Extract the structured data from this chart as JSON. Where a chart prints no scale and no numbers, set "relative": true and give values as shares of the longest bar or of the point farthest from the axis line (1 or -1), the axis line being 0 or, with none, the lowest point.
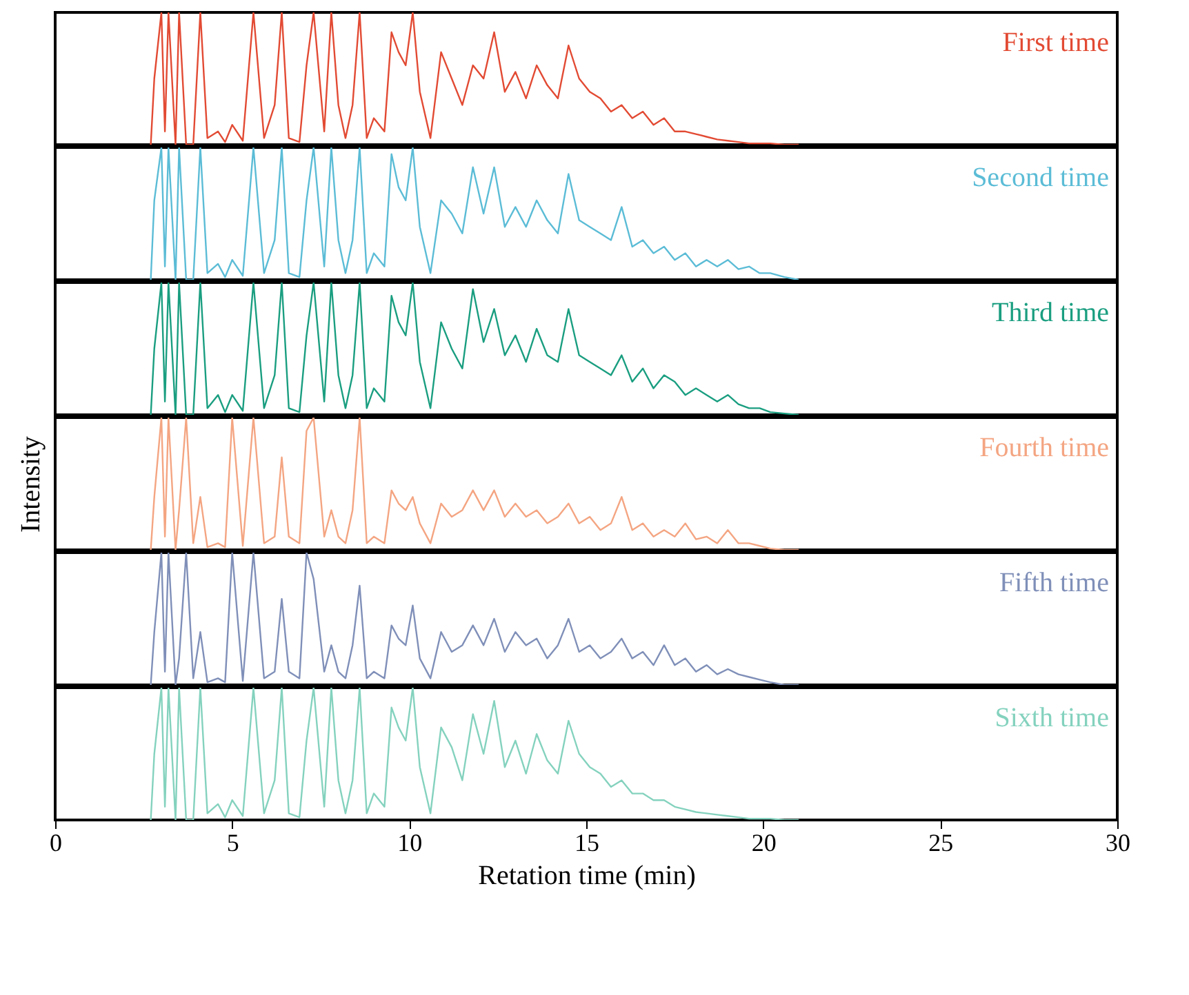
{
  "chart_data": [
    {
      "type": "line",
      "relative": true,
      "tick_labels": false,
      "xlim": [
        0,
        30
      ],
      "xticks": [
        0,
        5,
        10,
        15,
        20,
        25,
        30
      ],
      "x": [
        2.7,
        2.8,
        3.0,
        3.1,
        3.2,
        3.4,
        3.5,
        3.7,
        3.9,
        4.1,
        4.3,
        4.6,
        4.8,
        5.0,
        5.3,
        5.6,
        5.9,
        6.2,
        6.4,
        6.6,
        6.9,
        7.1,
        7.3,
        7.6,
        7.8,
        8.0,
        8.2,
        8.4,
        8.6,
        8.8,
        9.0,
        9.3,
        9.5,
        9.7,
        9.9,
        10.1,
        10.3,
        10.6,
        10.9,
        11.2,
        11.5,
        11.8,
        12.1,
        12.4,
        12.7,
        13.0,
        13.3,
        13.6,
        13.9,
        14.2,
        14.5,
        14.8,
        15.1,
        15.4,
        15.7,
        16.0,
        16.3,
        16.6,
        16.9,
        17.2,
        17.5,
        17.8,
        18.1,
        18.4,
        18.7,
        19.0,
        19.3,
        19.6,
        19.9,
        20.2,
        20.6,
        21.0
      ],
      "series": [
        {
          "name": "First time",
          "color": "#e24a33",
          "values": [
            0,
            0.5,
            1,
            0.1,
            1,
            0,
            1,
            0,
            0,
            1,
            0.05,
            0.1,
            0.02,
            0.15,
            0.03,
            1,
            0.05,
            0.3,
            1,
            0.05,
            0.02,
            0.6,
            1,
            0.1,
            1,
            0.3,
            0.05,
            0.3,
            1,
            0.05,
            0.2,
            0.1,
            0.85,
            0.7,
            0.6,
            1,
            0.4,
            0.05,
            0.7,
            0.5,
            0.3,
            0.6,
            0.5,
            0.85,
            0.4,
            0.55,
            0.35,
            0.6,
            0.45,
            0.35,
            0.75,
            0.5,
            0.4,
            0.35,
            0.25,
            0.3,
            0.2,
            0.25,
            0.15,
            0.2,
            0.1,
            0.1,
            0.08,
            0.06,
            0.04,
            0.03,
            0.02,
            0.01,
            0.01,
            0.01,
            0,
            0
          ]
        }
      ]
    },
    {
      "type": "line",
      "relative": true,
      "tick_labels": false,
      "xlim": [
        0,
        30
      ],
      "xticks": [
        0,
        5,
        10,
        15,
        20,
        25,
        30
      ],
      "x": [
        2.7,
        2.8,
        3.0,
        3.1,
        3.2,
        3.4,
        3.5,
        3.7,
        3.9,
        4.1,
        4.3,
        4.6,
        4.8,
        5.0,
        5.3,
        5.6,
        5.9,
        6.2,
        6.4,
        6.6,
        6.9,
        7.1,
        7.3,
        7.6,
        7.8,
        8.0,
        8.2,
        8.4,
        8.6,
        8.8,
        9.0,
        9.3,
        9.5,
        9.7,
        9.9,
        10.1,
        10.3,
        10.6,
        10.9,
        11.2,
        11.5,
        11.8,
        12.1,
        12.4,
        12.7,
        13.0,
        13.3,
        13.6,
        13.9,
        14.2,
        14.5,
        14.8,
        15.1,
        15.4,
        15.7,
        16.0,
        16.3,
        16.6,
        16.9,
        17.2,
        17.5,
        17.8,
        18.1,
        18.4,
        18.7,
        19.0,
        19.3,
        19.6,
        19.9,
        20.2,
        20.6,
        21.0
      ],
      "series": [
        {
          "name": "Second time",
          "color": "#5bbcd6",
          "values": [
            0,
            0.6,
            1,
            0.1,
            1,
            0,
            1,
            0,
            0,
            1,
            0.05,
            0.12,
            0.02,
            0.15,
            0.03,
            1,
            0.05,
            0.3,
            1,
            0.05,
            0.02,
            0.6,
            1,
            0.1,
            1,
            0.3,
            0.05,
            0.3,
            1,
            0.05,
            0.2,
            0.1,
            0.95,
            0.7,
            0.6,
            1,
            0.4,
            0.05,
            0.6,
            0.5,
            0.35,
            0.85,
            0.5,
            0.85,
            0.4,
            0.55,
            0.4,
            0.6,
            0.45,
            0.35,
            0.8,
            0.45,
            0.4,
            0.35,
            0.3,
            0.55,
            0.25,
            0.3,
            0.2,
            0.25,
            0.15,
            0.2,
            0.1,
            0.15,
            0.1,
            0.15,
            0.08,
            0.1,
            0.05,
            0.05,
            0.02,
            0
          ]
        }
      ]
    },
    {
      "type": "line",
      "relative": true,
      "tick_labels": false,
      "xlim": [
        0,
        30
      ],
      "xticks": [
        0,
        5,
        10,
        15,
        20,
        25,
        30
      ],
      "x": [
        2.7,
        2.8,
        3.0,
        3.1,
        3.2,
        3.4,
        3.5,
        3.7,
        3.9,
        4.1,
        4.3,
        4.6,
        4.8,
        5.0,
        5.3,
        5.6,
        5.9,
        6.2,
        6.4,
        6.6,
        6.9,
        7.1,
        7.3,
        7.6,
        7.8,
        8.0,
        8.2,
        8.4,
        8.6,
        8.8,
        9.0,
        9.3,
        9.5,
        9.7,
        9.9,
        10.1,
        10.3,
        10.6,
        10.9,
        11.2,
        11.5,
        11.8,
        12.1,
        12.4,
        12.7,
        13.0,
        13.3,
        13.6,
        13.9,
        14.2,
        14.5,
        14.8,
        15.1,
        15.4,
        15.7,
        16.0,
        16.3,
        16.6,
        16.9,
        17.2,
        17.5,
        17.8,
        18.1,
        18.4,
        18.7,
        19.0,
        19.3,
        19.6,
        19.9,
        20.2,
        20.6,
        21.0
      ],
      "series": [
        {
          "name": "Third time",
          "color": "#1a9e80",
          "values": [
            0,
            0.5,
            1,
            0.1,
            1,
            0,
            1,
            0,
            0,
            1,
            0.05,
            0.15,
            0.02,
            0.15,
            0.03,
            1,
            0.05,
            0.3,
            1,
            0.05,
            0.02,
            0.6,
            1,
            0.1,
            1,
            0.3,
            0.05,
            0.3,
            1,
            0.05,
            0.2,
            0.1,
            0.9,
            0.7,
            0.6,
            1,
            0.4,
            0.05,
            0.7,
            0.5,
            0.35,
            0.95,
            0.55,
            0.8,
            0.45,
            0.6,
            0.4,
            0.65,
            0.45,
            0.4,
            0.8,
            0.45,
            0.4,
            0.35,
            0.3,
            0.45,
            0.25,
            0.35,
            0.2,
            0.3,
            0.25,
            0.15,
            0.2,
            0.15,
            0.1,
            0.15,
            0.08,
            0.05,
            0.05,
            0.02,
            0.01,
            0
          ]
        }
      ]
    },
    {
      "type": "line",
      "relative": true,
      "tick_labels": false,
      "xlim": [
        0,
        30
      ],
      "xticks": [
        0,
        5,
        10,
        15,
        20,
        25,
        30
      ],
      "ylabel": "Intensity",
      "x": [
        2.7,
        2.8,
        3.0,
        3.1,
        3.2,
        3.4,
        3.5,
        3.7,
        3.9,
        4.1,
        4.3,
        4.6,
        4.8,
        5.0,
        5.3,
        5.6,
        5.9,
        6.2,
        6.4,
        6.6,
        6.9,
        7.1,
        7.3,
        7.6,
        7.8,
        8.0,
        8.2,
        8.4,
        8.6,
        8.8,
        9.0,
        9.3,
        9.5,
        9.7,
        9.9,
        10.1,
        10.3,
        10.6,
        10.9,
        11.2,
        11.5,
        11.8,
        12.1,
        12.4,
        12.7,
        13.0,
        13.3,
        13.6,
        13.9,
        14.2,
        14.5,
        14.8,
        15.1,
        15.4,
        15.7,
        16.0,
        16.3,
        16.6,
        16.9,
        17.2,
        17.5,
        17.8,
        18.1,
        18.4,
        18.7,
        19.0,
        19.3,
        19.6,
        19.9,
        20.2,
        20.6,
        21.0
      ],
      "series": [
        {
          "name": "Fourth time",
          "color": "#f4a582",
          "values": [
            0,
            0.4,
            1,
            0.1,
            1,
            0,
            0.3,
            1,
            0.05,
            0.4,
            0.02,
            0.05,
            0.02,
            1,
            0.03,
            1,
            0.05,
            0.1,
            0.7,
            0.1,
            0.05,
            0.9,
            1,
            0.1,
            0.3,
            0.1,
            0.05,
            0.3,
            1,
            0.05,
            0.1,
            0.05,
            0.45,
            0.35,
            0.3,
            0.4,
            0.2,
            0.05,
            0.35,
            0.25,
            0.3,
            0.45,
            0.3,
            0.45,
            0.25,
            0.35,
            0.25,
            0.3,
            0.2,
            0.25,
            0.35,
            0.2,
            0.25,
            0.15,
            0.2,
            0.4,
            0.15,
            0.2,
            0.1,
            0.15,
            0.1,
            0.2,
            0.08,
            0.1,
            0.05,
            0.15,
            0.05,
            0.05,
            0.03,
            0.01,
            0,
            0
          ]
        }
      ]
    },
    {
      "type": "line",
      "relative": true,
      "tick_labels": false,
      "xlim": [
        0,
        30
      ],
      "xticks": [
        0,
        5,
        10,
        15,
        20,
        25,
        30
      ],
      "x": [
        2.7,
        2.8,
        3.0,
        3.1,
        3.2,
        3.4,
        3.5,
        3.7,
        3.9,
        4.1,
        4.3,
        4.6,
        4.8,
        5.0,
        5.3,
        5.6,
        5.9,
        6.2,
        6.4,
        6.6,
        6.9,
        7.1,
        7.3,
        7.6,
        7.8,
        8.0,
        8.2,
        8.4,
        8.6,
        8.8,
        9.0,
        9.3,
        9.5,
        9.7,
        9.9,
        10.1,
        10.3,
        10.6,
        10.9,
        11.2,
        11.5,
        11.8,
        12.1,
        12.4,
        12.7,
        13.0,
        13.3,
        13.6,
        13.9,
        14.2,
        14.5,
        14.8,
        15.1,
        15.4,
        15.7,
        16.0,
        16.3,
        16.6,
        16.9,
        17.2,
        17.5,
        17.8,
        18.1,
        18.4,
        18.7,
        19.0,
        19.3,
        19.6,
        19.9,
        20.2,
        20.6,
        21.0
      ],
      "series": [
        {
          "name": "Fifth time",
          "color": "#7f8fb8",
          "values": [
            0,
            0.4,
            1,
            0.1,
            1,
            0,
            0.2,
            1,
            0.05,
            0.4,
            0.02,
            0.05,
            0.02,
            1,
            0.03,
            1,
            0.05,
            0.1,
            0.65,
            0.1,
            0.05,
            1,
            0.8,
            0.1,
            0.3,
            0.1,
            0.05,
            0.3,
            0.75,
            0.05,
            0.1,
            0.05,
            0.45,
            0.35,
            0.3,
            0.6,
            0.2,
            0.05,
            0.4,
            0.25,
            0.3,
            0.45,
            0.3,
            0.5,
            0.25,
            0.4,
            0.3,
            0.35,
            0.2,
            0.3,
            0.5,
            0.25,
            0.3,
            0.2,
            0.25,
            0.35,
            0.2,
            0.25,
            0.15,
            0.3,
            0.15,
            0.2,
            0.1,
            0.15,
            0.08,
            0.12,
            0.08,
            0.06,
            0.04,
            0.02,
            0,
            0
          ]
        }
      ]
    },
    {
      "type": "line",
      "relative": true,
      "tick_labels": "x",
      "xlim": [
        0,
        30
      ],
      "xticks": [
        0,
        5,
        10,
        15,
        20,
        25,
        30
      ],
      "xlabel": "Retation time (min)",
      "x": [
        2.7,
        2.8,
        3.0,
        3.1,
        3.2,
        3.4,
        3.5,
        3.7,
        3.9,
        4.1,
        4.3,
        4.6,
        4.8,
        5.0,
        5.3,
        5.6,
        5.9,
        6.2,
        6.4,
        6.6,
        6.9,
        7.1,
        7.3,
        7.6,
        7.8,
        8.0,
        8.2,
        8.4,
        8.6,
        8.8,
        9.0,
        9.3,
        9.5,
        9.7,
        9.9,
        10.1,
        10.3,
        10.6,
        10.9,
        11.2,
        11.5,
        11.8,
        12.1,
        12.4,
        12.7,
        13.0,
        13.3,
        13.6,
        13.9,
        14.2,
        14.5,
        14.8,
        15.1,
        15.4,
        15.7,
        16.0,
        16.3,
        16.6,
        16.9,
        17.2,
        17.5,
        17.8,
        18.1,
        18.4,
        18.7,
        19.0,
        19.3,
        19.6,
        19.9,
        20.2,
        20.6,
        21.0
      ],
      "series": [
        {
          "name": "Sixth time",
          "color": "#84d2be",
          "values": [
            0,
            0.5,
            1,
            0.1,
            1,
            0,
            1,
            0,
            0,
            1,
            0.05,
            0.12,
            0.02,
            0.15,
            0.03,
            1,
            0.05,
            0.3,
            1,
            0.05,
            0.02,
            0.6,
            1,
            0.1,
            1,
            0.3,
            0.05,
            0.3,
            1,
            0.05,
            0.2,
            0.1,
            0.85,
            0.7,
            0.6,
            1,
            0.4,
            0.05,
            0.7,
            0.55,
            0.3,
            0.8,
            0.5,
            0.9,
            0.4,
            0.6,
            0.35,
            0.65,
            0.45,
            0.35,
            0.75,
            0.5,
            0.4,
            0.35,
            0.25,
            0.3,
            0.2,
            0.2,
            0.15,
            0.15,
            0.1,
            0.08,
            0.06,
            0.05,
            0.04,
            0.03,
            0.02,
            0.01,
            0.01,
            0.01,
            0,
            0
          ]
        }
      ]
    }
  ]
}
